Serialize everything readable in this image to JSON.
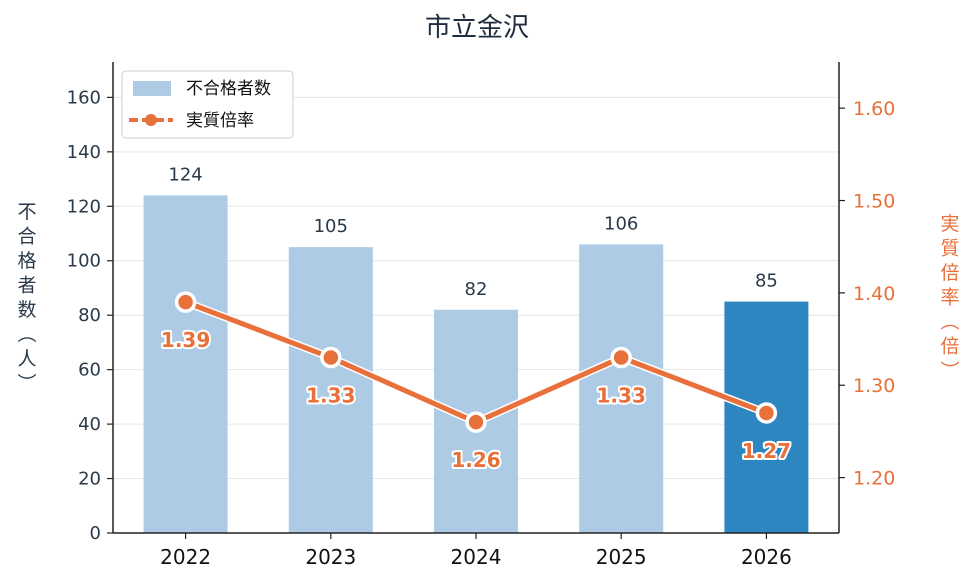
{
  "chart_data": {
    "type": "bar",
    "title": "市立金沢",
    "categories": [
      "2022",
      "2023",
      "2024",
      "2025",
      "2026"
    ],
    "series": [
      {
        "name": "不合格者数",
        "type": "bar",
        "axis": "left",
        "values": [
          124,
          105,
          82,
          106,
          85
        ],
        "color": "#aecbe6",
        "highlight_color": "#2e86c1",
        "highlight_index": 4
      },
      {
        "name": "実質倍率",
        "type": "line",
        "axis": "right",
        "values": [
          1.39,
          1.33,
          1.26,
          1.33,
          1.27
        ],
        "labels": [
          "1.39",
          "1.33",
          "1.26",
          "1.33",
          "1.27"
        ],
        "color": "#e8703a"
      }
    ],
    "y_left": {
      "label": "不合格者数（人）",
      "lim": [
        0,
        173
      ],
      "ticks": [
        0,
        20,
        40,
        60,
        80,
        100,
        120,
        140,
        160
      ]
    },
    "y_right": {
      "label": "実質倍率（倍）",
      "lim": [
        1.14,
        1.65
      ],
      "ticks": [
        "1.20",
        "1.30",
        "1.40",
        "1.50",
        "1.60"
      ],
      "color": "#e8703a"
    },
    "grid": true,
    "legend_position": "top-left"
  }
}
